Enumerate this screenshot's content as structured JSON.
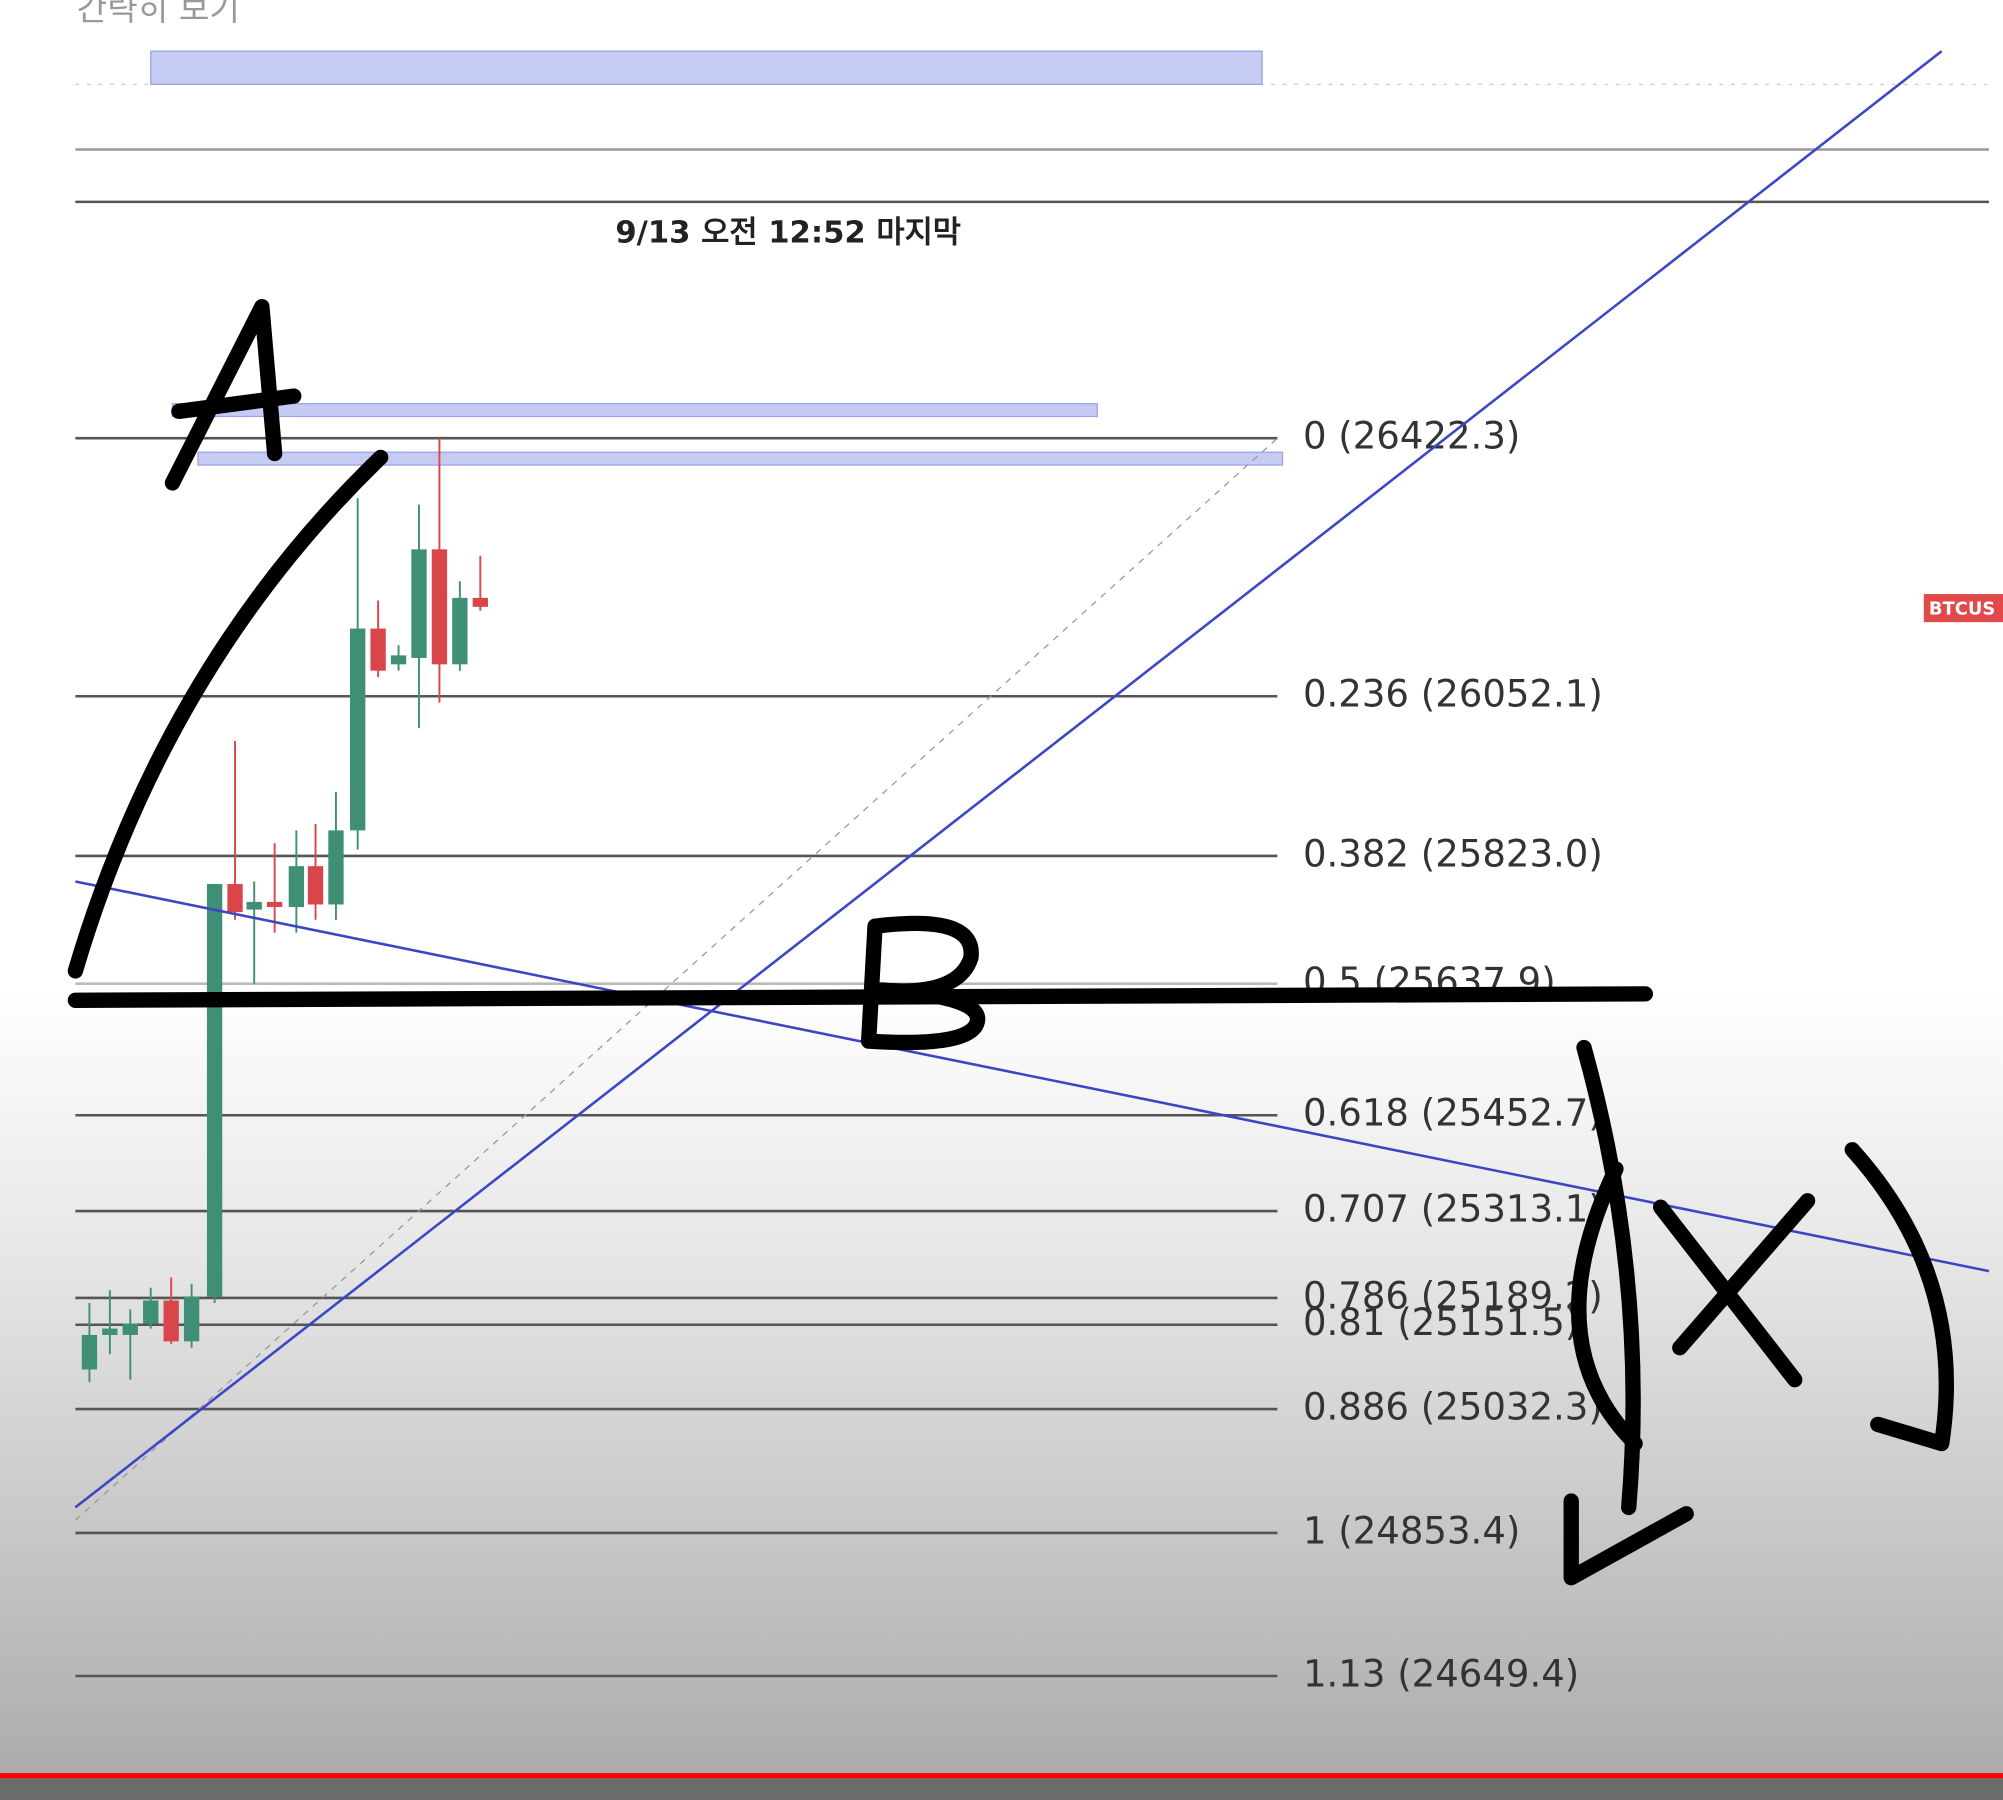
{
  "header": {
    "collapse": "간략히 보기"
  },
  "chart": {
    "last_update": "9/13 오전 12:52 마지막",
    "symbol_tag": "BTCUS",
    "fib_levels": [
      "0 (26422.3)",
      "0.236 (26052.1)",
      "0.382 (25823.0)",
      "0.5 (25637.9)",
      "0.618 (25452.7)",
      "0.707 (25313.1)",
      "0.786 (25189.2)",
      "0.81 (25151.5)",
      "0.886 (25032.3)",
      "1 (24853.4)",
      "1.13 (24649.4)"
    ]
  }
}
